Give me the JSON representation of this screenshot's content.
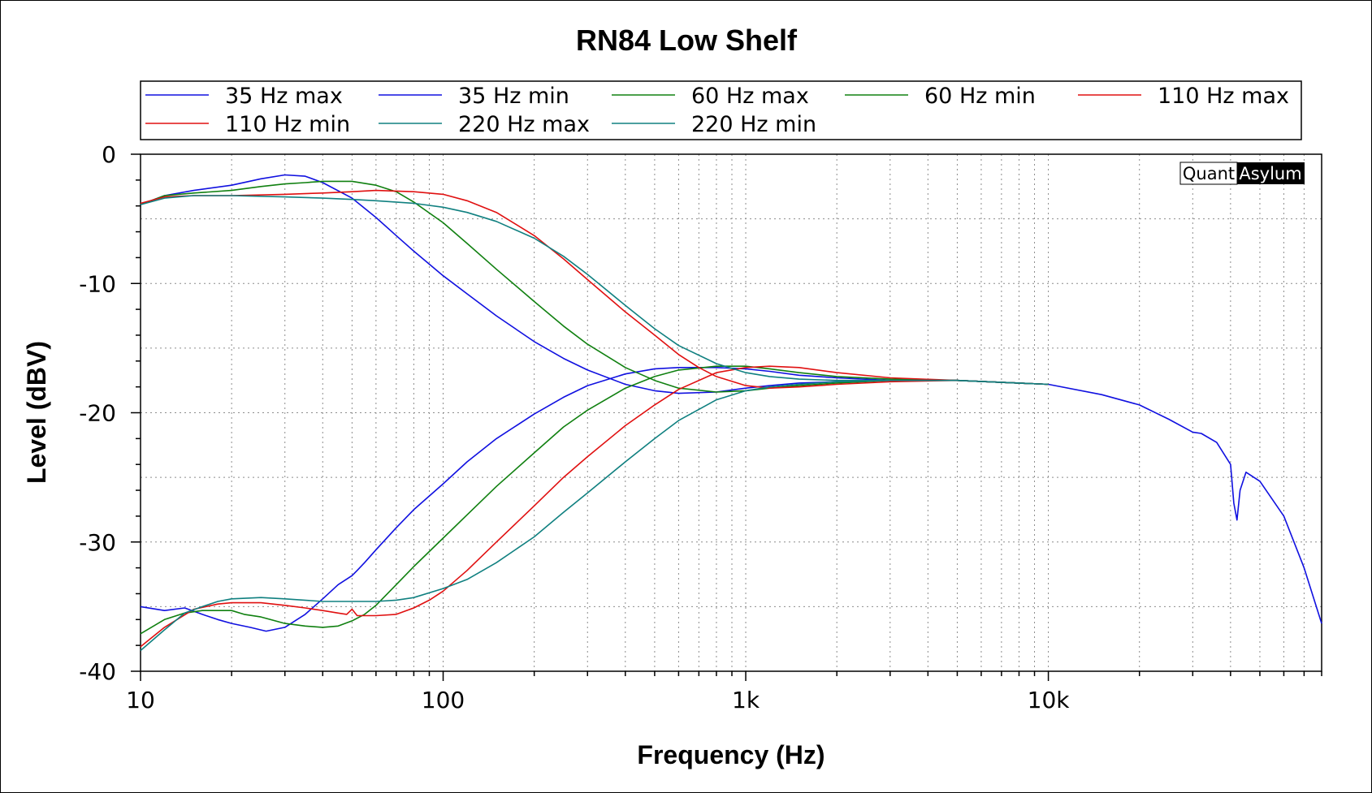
{
  "chart_data": {
    "type": "line",
    "title": "RN84 Low Shelf",
    "xlabel": "Frequency (Hz)",
    "ylabel": "Level (dBV)",
    "x_scale": "log",
    "xlim": [
      10,
      80000
    ],
    "ylim": [
      -40,
      0
    ],
    "x_ticks": [
      10,
      100,
      1000,
      10000
    ],
    "x_tick_labels": [
      "10",
      "100",
      "1k",
      "10k"
    ],
    "y_ticks": [
      0,
      -10,
      -20,
      -30,
      -40
    ],
    "y_tick_labels": [
      "0",
      "-10",
      "-20",
      "-30",
      "-40"
    ],
    "grid": true,
    "legend_position": "top",
    "watermark": {
      "left": "Quant",
      "right": "Asylum"
    },
    "series": [
      {
        "name": "35 Hz max",
        "color": "#1010e0",
        "x": [
          10,
          12,
          15,
          20,
          25,
          30,
          35,
          40,
          50,
          60,
          70,
          80,
          100,
          120,
          150,
          200,
          250,
          300,
          400,
          500,
          600,
          800,
          1000,
          1200,
          1500,
          2000,
          3000,
          5000,
          10000,
          15000,
          20000,
          25000,
          30000,
          32000,
          36000,
          40000,
          41000,
          42000,
          43000,
          45000,
          50000,
          60000,
          70000,
          80000
        ],
        "y": [
          -3.9,
          -3.2,
          -2.8,
          -2.4,
          -1.9,
          -1.6,
          -1.7,
          -2.2,
          -3.4,
          -4.9,
          -6.3,
          -7.5,
          -9.4,
          -10.8,
          -12.5,
          -14.5,
          -15.8,
          -16.7,
          -17.8,
          -18.3,
          -18.5,
          -18.4,
          -18.1,
          -17.9,
          -17.7,
          -17.6,
          -17.5,
          -17.5,
          -17.8,
          -18.6,
          -19.4,
          -20.5,
          -21.5,
          -21.6,
          -22.3,
          -24,
          -27,
          -28.3,
          -26,
          -24.6,
          -25.3,
          -28,
          -32,
          -36.3
        ]
      },
      {
        "name": "35 Hz min",
        "color": "#1010e0",
        "x": [
          10,
          12,
          14,
          16,
          18,
          20,
          23,
          26,
          30,
          35,
          40,
          45,
          50,
          52,
          55,
          60,
          70,
          80,
          100,
          120,
          150,
          200,
          250,
          300,
          400,
          500,
          600,
          800,
          1000,
          1200,
          1500,
          2000,
          3000,
          5000,
          10000
        ],
        "y": [
          -35,
          -35.3,
          -35.1,
          -35.6,
          -36,
          -36.3,
          -36.6,
          -36.9,
          -36.6,
          -35.6,
          -34.4,
          -33.3,
          -32.6,
          -32.2,
          -31.6,
          -30.6,
          -28.9,
          -27.5,
          -25.5,
          -23.8,
          -22,
          -20.1,
          -18.8,
          -17.9,
          -17,
          -16.6,
          -16.5,
          -16.5,
          -16.6,
          -16.8,
          -17.1,
          -17.3,
          -17.5,
          -17.5,
          -17.8
        ]
      },
      {
        "name": "60 Hz max",
        "color": "#108010",
        "x": [
          10,
          12,
          15,
          20,
          25,
          30,
          35,
          40,
          50,
          60,
          70,
          80,
          100,
          120,
          150,
          200,
          250,
          300,
          400,
          500,
          600,
          800,
          1000,
          1200,
          1500,
          2000,
          3000,
          5000,
          10000
        ],
        "y": [
          -3.9,
          -3.2,
          -3,
          -2.8,
          -2.5,
          -2.3,
          -2.2,
          -2.1,
          -2.1,
          -2.4,
          -2.9,
          -3.7,
          -5.3,
          -6.9,
          -8.9,
          -11.4,
          -13.3,
          -14.7,
          -16.5,
          -17.5,
          -18.1,
          -18.4,
          -18.3,
          -18.1,
          -17.9,
          -17.7,
          -17.5,
          -17.5,
          -17.8
        ]
      },
      {
        "name": "60 Hz min",
        "color": "#108010",
        "x": [
          10,
          12,
          14,
          16,
          18,
          20,
          22,
          25,
          30,
          35,
          40,
          45,
          50,
          55,
          60,
          70,
          80,
          100,
          120,
          150,
          200,
          250,
          300,
          400,
          500,
          600,
          800,
          1000,
          1200,
          1500,
          2000,
          3000,
          5000,
          10000
        ],
        "y": [
          -37.1,
          -36,
          -35.5,
          -35.3,
          -35.3,
          -35.3,
          -35.6,
          -35.8,
          -36.3,
          -36.5,
          -36.6,
          -36.5,
          -36.1,
          -35.6,
          -34.9,
          -33.3,
          -31.9,
          -29.7,
          -27.9,
          -25.7,
          -23.1,
          -21.1,
          -19.8,
          -18.1,
          -17.2,
          -16.7,
          -16.4,
          -16.4,
          -16.6,
          -16.9,
          -17.2,
          -17.4,
          -17.5,
          -17.8
        ]
      },
      {
        "name": "110 Hz max",
        "color": "#e01010",
        "x": [
          10,
          12,
          15,
          20,
          30,
          40,
          50,
          60,
          80,
          100,
          120,
          150,
          200,
          250,
          300,
          400,
          500,
          600,
          700,
          800,
          1000,
          1200,
          1500,
          2000,
          3000,
          5000,
          10000
        ],
        "y": [
          -3.8,
          -3.3,
          -3.2,
          -3.2,
          -3.1,
          -3,
          -2.9,
          -2.8,
          -2.9,
          -3.1,
          -3.6,
          -4.5,
          -6.3,
          -8.1,
          -9.7,
          -12.2,
          -14,
          -15.5,
          -16.5,
          -17.2,
          -17.9,
          -18.1,
          -18,
          -17.8,
          -17.6,
          -17.5,
          -17.8
        ]
      },
      {
        "name": "110 Hz min",
        "color": "#e01010",
        "x": [
          10,
          12,
          15,
          18,
          20,
          25,
          30,
          35,
          40,
          45,
          48,
          50,
          52,
          55,
          60,
          70,
          80,
          90,
          100,
          120,
          150,
          200,
          250,
          300,
          400,
          500,
          600,
          800,
          1000,
          1200,
          1500,
          2000,
          3000,
          5000,
          10000
        ],
        "y": [
          -38.1,
          -36.6,
          -35.2,
          -34.8,
          -34.7,
          -34.7,
          -34.9,
          -35.1,
          -35.3,
          -35.5,
          -35.6,
          -35.2,
          -35.7,
          -35.7,
          -35.7,
          -35.6,
          -35.1,
          -34.5,
          -33.8,
          -32.2,
          -30,
          -27.2,
          -25,
          -23.4,
          -21,
          -19.4,
          -18.2,
          -16.9,
          -16.5,
          -16.4,
          -16.5,
          -16.9,
          -17.3,
          -17.5,
          -17.8
        ]
      },
      {
        "name": "220 Hz max",
        "color": "#108080",
        "x": [
          10,
          12,
          15,
          20,
          30,
          40,
          50,
          60,
          80,
          100,
          120,
          150,
          200,
          250,
          300,
          400,
          500,
          600,
          800,
          1000,
          1200,
          1500,
          2000,
          3000,
          5000,
          10000
        ],
        "y": [
          -3.9,
          -3.4,
          -3.2,
          -3.2,
          -3.3,
          -3.4,
          -3.5,
          -3.6,
          -3.8,
          -4.1,
          -4.5,
          -5.2,
          -6.5,
          -7.9,
          -9.3,
          -11.7,
          -13.5,
          -14.8,
          -16.2,
          -16.9,
          -17.2,
          -17.4,
          -17.5,
          -17.5,
          -17.5,
          -17.8
        ]
      },
      {
        "name": "220 Hz min",
        "color": "#108080",
        "x": [
          10,
          12,
          14,
          16,
          18,
          20,
          25,
          30,
          40,
          50,
          60,
          70,
          80,
          100,
          120,
          150,
          200,
          250,
          300,
          400,
          500,
          600,
          800,
          1000,
          1200,
          1500,
          2000,
          3000,
          5000,
          10000
        ],
        "y": [
          -38.4,
          -36.8,
          -35.5,
          -35,
          -34.6,
          -34.4,
          -34.3,
          -34.4,
          -34.6,
          -34.6,
          -34.6,
          -34.5,
          -34.3,
          -33.6,
          -32.9,
          -31.6,
          -29.6,
          -27.7,
          -26.2,
          -23.8,
          -22,
          -20.6,
          -19,
          -18.3,
          -18,
          -17.8,
          -17.6,
          -17.5,
          -17.5,
          -17.8
        ]
      }
    ]
  }
}
